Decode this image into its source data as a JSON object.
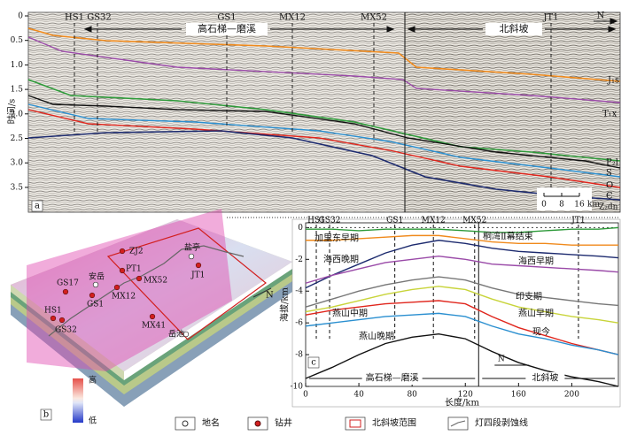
{
  "panel_a": {
    "label": "a",
    "y_label": "时间/s",
    "yticks": [
      0,
      0.5,
      {
        "value": 1,
        "label": "1.0"
      },
      1.5,
      {
        "value": 2,
        "label": "2.0"
      },
      2.5,
      {
        "value": 3,
        "label": "3.0"
      },
      3.5
    ],
    "wells": [
      "HS1",
      "GS32",
      "GS1",
      "MX12",
      "MX52",
      "JT1"
    ],
    "regions": [
      "高石梯—磨溪",
      "北斜坡"
    ],
    "north": "N",
    "horizons": [
      "J₁s",
      "T₁x",
      "P₂l",
      "S",
      "O",
      "Є",
      "Z₂dn"
    ],
    "scale_ticks": [
      0,
      8,
      16
    ],
    "scale_unit": "km"
  },
  "panel_b": {
    "label": "b",
    "places": [
      "ZJ2",
      "盐亭",
      "PT1",
      "MX52",
      "GS17",
      "安岳",
      "GS1",
      "MX12",
      "JT1",
      "HS1",
      "GS32",
      "MX41",
      "岳池"
    ],
    "north": "N",
    "colorbar": [
      "高",
      "低"
    ]
  },
  "legend": [
    "地名",
    "钻井",
    "北斜坡范围",
    "灯四段剥蚀线"
  ],
  "chart_data": {
    "type": "line",
    "label": "c",
    "x_label": "长度/km",
    "y_label": "海拔/km",
    "x": [
      0,
      20,
      40,
      60,
      80,
      100,
      120,
      140,
      160,
      180,
      200,
      220,
      235
    ],
    "xlim": [
      0,
      235
    ],
    "xticks": [
      0,
      40,
      80,
      120,
      160,
      200
    ],
    "ylim": [
      -10,
      0.3
    ],
    "yticks": [
      0,
      -2,
      -4,
      -6,
      -8,
      -10
    ],
    "wells": [
      "HS1",
      "GS32",
      "GS1",
      "MX12",
      "MX52",
      "JT1"
    ],
    "well_x": [
      8,
      18,
      67,
      96,
      127,
      205
    ],
    "divider_x": 130,
    "regions": [
      "高石梯—磨溪",
      "北斜坡"
    ],
    "north": "N",
    "series": [
      {
        "name": "桐湾Ⅱ幕结束",
        "color": "#2e9a3a",
        "values": [
          -0.1,
          -0.1,
          -0.2,
          -0.1,
          -0.1,
          -0.1,
          -0.2,
          -0.3,
          -0.3,
          -0.2,
          -0.1,
          -0.1,
          0
        ]
      },
      {
        "name": "加里东早期",
        "color": "#f08a1c",
        "values": [
          -0.8,
          -0.8,
          -0.7,
          -0.6,
          -0.5,
          -0.5,
          -0.7,
          -0.9,
          -1.0,
          -1.0,
          -1.1,
          -1.1,
          -1.1
        ]
      },
      {
        "name": "海西晚期",
        "color": "#1c2a6e",
        "values": [
          -3.8,
          -3.0,
          -2.3,
          -1.6,
          -1.1,
          -0.8,
          -1.0,
          -1.3,
          -1.5,
          -1.6,
          -1.7,
          -1.8,
          -1.9
        ]
      },
      {
        "name": "海西早期",
        "color": "#9a4aa8",
        "values": [
          -3.5,
          -3.0,
          -2.6,
          -2.2,
          -2.0,
          -1.8,
          -2.0,
          -2.3,
          -2.4,
          -2.5,
          -2.6,
          -2.7,
          -2.8
        ]
      },
      {
        "name": "印支期",
        "color": "#777777",
        "values": [
          -5.0,
          -4.5,
          -4.0,
          -3.6,
          -3.3,
          -3.1,
          -3.3,
          -3.8,
          -4.2,
          -4.4,
          -4.6,
          -4.8,
          -4.9
        ]
      },
      {
        "name": "燕山早期",
        "color": "#c8d43a",
        "values": [
          -5.3,
          -5.0,
          -4.6,
          -4.2,
          -3.9,
          -3.7,
          -3.9,
          -4.5,
          -5.0,
          -5.3,
          -5.6,
          -5.8,
          -6.0
        ]
      },
      {
        "name": "燕山中期",
        "color": "#e0251c",
        "values": [
          -5.5,
          -5.2,
          -5.0,
          -4.8,
          -4.7,
          -4.6,
          -4.8,
          -5.6,
          -6.3,
          -6.8,
          -7.3,
          -7.7,
          -8.0
        ]
      },
      {
        "name": "现今",
        "color": "#2a8fd0",
        "values": [
          -6.2,
          -6.0,
          -5.8,
          -5.6,
          -5.5,
          -5.4,
          -5.6,
          -6.2,
          -6.7,
          -7.0,
          -7.4,
          -7.7,
          -8.0
        ]
      },
      {
        "name": "燕山晚期",
        "color": "#111111",
        "values": [
          -9.5,
          -8.8,
          -8.0,
          -7.3,
          -6.9,
          -6.7,
          -7.0,
          -7.8,
          -8.5,
          -9.0,
          -9.4,
          -9.7,
          -10.0
        ]
      }
    ]
  }
}
